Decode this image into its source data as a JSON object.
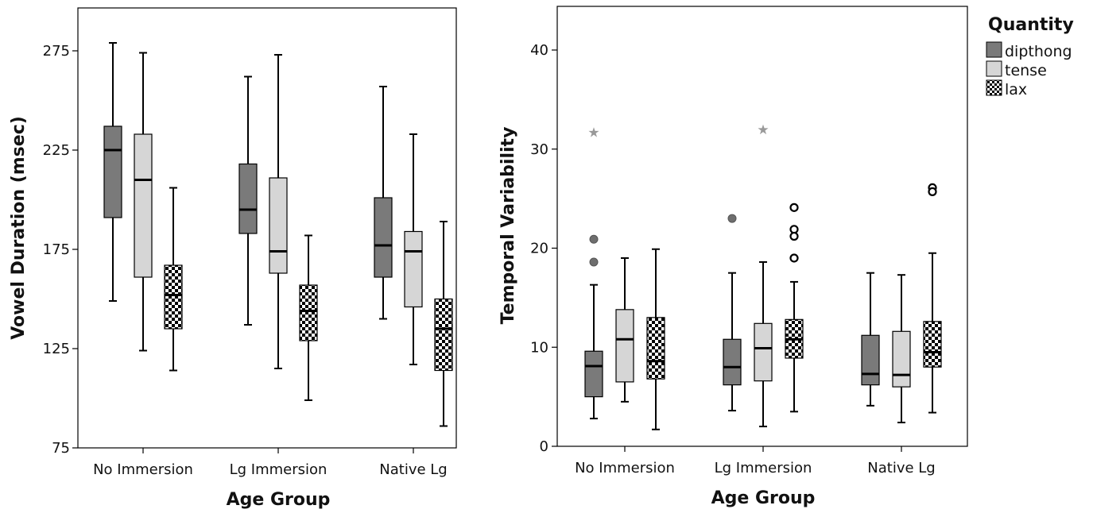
{
  "colors": {
    "dipthong": "#7a7a7a",
    "tense": "#d6d6d6",
    "lax": "checker",
    "outlier_fill": "#6e6e6e",
    "extreme_star": "#999999"
  },
  "legend": {
    "title": "Quantity",
    "entries": [
      "dipthong",
      "tense",
      "lax"
    ]
  },
  "chart_data": [
    {
      "type": "boxplot",
      "ylabel": "Vowel Duration (msec)",
      "xlabel": "Age Group",
      "ylim": [
        75,
        275
      ],
      "yticks": [
        75,
        125,
        175,
        225,
        275
      ],
      "categories": [
        "No Immersion",
        "Lg Immersion",
        "Native Lg"
      ],
      "series": [
        {
          "name": "dipthong",
          "boxes": [
            {
              "min": 149,
              "q1": 191,
              "median": 225,
              "q3": 237,
              "max": 279,
              "outliers": [],
              "extremes": []
            },
            {
              "min": 137,
              "q1": 183,
              "median": 195,
              "q3": 218,
              "max": 262,
              "outliers": [],
              "extremes": []
            },
            {
              "min": 140,
              "q1": 161,
              "median": 177,
              "q3": 201,
              "max": 257,
              "outliers": [],
              "extremes": []
            }
          ]
        },
        {
          "name": "tense",
          "boxes": [
            {
              "min": 124,
              "q1": 161,
              "median": 210,
              "q3": 233,
              "max": 274,
              "outliers": [],
              "extremes": []
            },
            {
              "min": 115,
              "q1": 163,
              "median": 174,
              "q3": 211,
              "max": 273,
              "outliers": [],
              "extremes": []
            },
            {
              "min": 117,
              "q1": 146,
              "median": 174,
              "q3": 184,
              "max": 233,
              "outliers": [],
              "extremes": []
            }
          ]
        },
        {
          "name": "lax",
          "boxes": [
            {
              "min": 114,
              "q1": 135,
              "median": 152,
              "q3": 167,
              "max": 206,
              "outliers": [],
              "extremes": []
            },
            {
              "min": 99,
              "q1": 129,
              "median": 144,
              "q3": 157,
              "max": 182,
              "outliers": [],
              "extremes": []
            },
            {
              "min": 86,
              "q1": 114,
              "median": 135,
              "q3": 150,
              "max": 189,
              "outliers": [],
              "extremes": []
            }
          ]
        }
      ]
    },
    {
      "type": "boxplot",
      "ylabel": "Temporal Variability",
      "xlabel": "Age Group",
      "ylim": [
        0,
        40
      ],
      "yticks": [
        0,
        10,
        20,
        30,
        40
      ],
      "categories": [
        "No Immersion",
        "Lg Immersion",
        "Native Lg"
      ],
      "series": [
        {
          "name": "dipthong",
          "boxes": [
            {
              "min": 2.8,
              "q1": 5,
              "median": 8.1,
              "q3": 9.6,
              "max": 16.3,
              "outliers": [
                20.9,
                18.6
              ],
              "extremes": [
                31.7
              ]
            },
            {
              "min": 3.6,
              "q1": 6.2,
              "median": 8,
              "q3": 10.8,
              "max": 17.5,
              "outliers": [
                23
              ],
              "extremes": []
            },
            {
              "min": 4.1,
              "q1": 6.2,
              "median": 7.3,
              "q3": 11.2,
              "max": 17.5,
              "outliers": [],
              "extremes": []
            }
          ]
        },
        {
          "name": "tense",
          "boxes": [
            {
              "min": 4.5,
              "q1": 6.5,
              "median": 10.8,
              "q3": 13.8,
              "max": 19,
              "outliers": [],
              "extremes": []
            },
            {
              "min": 2,
              "q1": 6.6,
              "median": 9.9,
              "q3": 12.4,
              "max": 18.6,
              "outliers": [],
              "extremes": [
                32
              ]
            },
            {
              "min": 2.4,
              "q1": 6,
              "median": 7.2,
              "q3": 11.6,
              "max": 17.3,
              "outliers": [],
              "extremes": []
            }
          ]
        },
        {
          "name": "lax",
          "boxes": [
            {
              "min": 1.7,
              "q1": 6.8,
              "median": 8.6,
              "q3": 13,
              "max": 19.9,
              "outliers": [],
              "extremes": []
            },
            {
              "min": 3.5,
              "q1": 8.9,
              "median": 10.8,
              "q3": 12.8,
              "max": 16.6,
              "outliers": [
                24.1,
                21.9,
                21.2,
                19
              ],
              "extremes": []
            },
            {
              "min": 3.4,
              "q1": 8,
              "median": 9.5,
              "q3": 12.6,
              "max": 19.5,
              "outliers": [
                26.1,
                25.7
              ],
              "extremes": []
            }
          ]
        }
      ]
    }
  ]
}
